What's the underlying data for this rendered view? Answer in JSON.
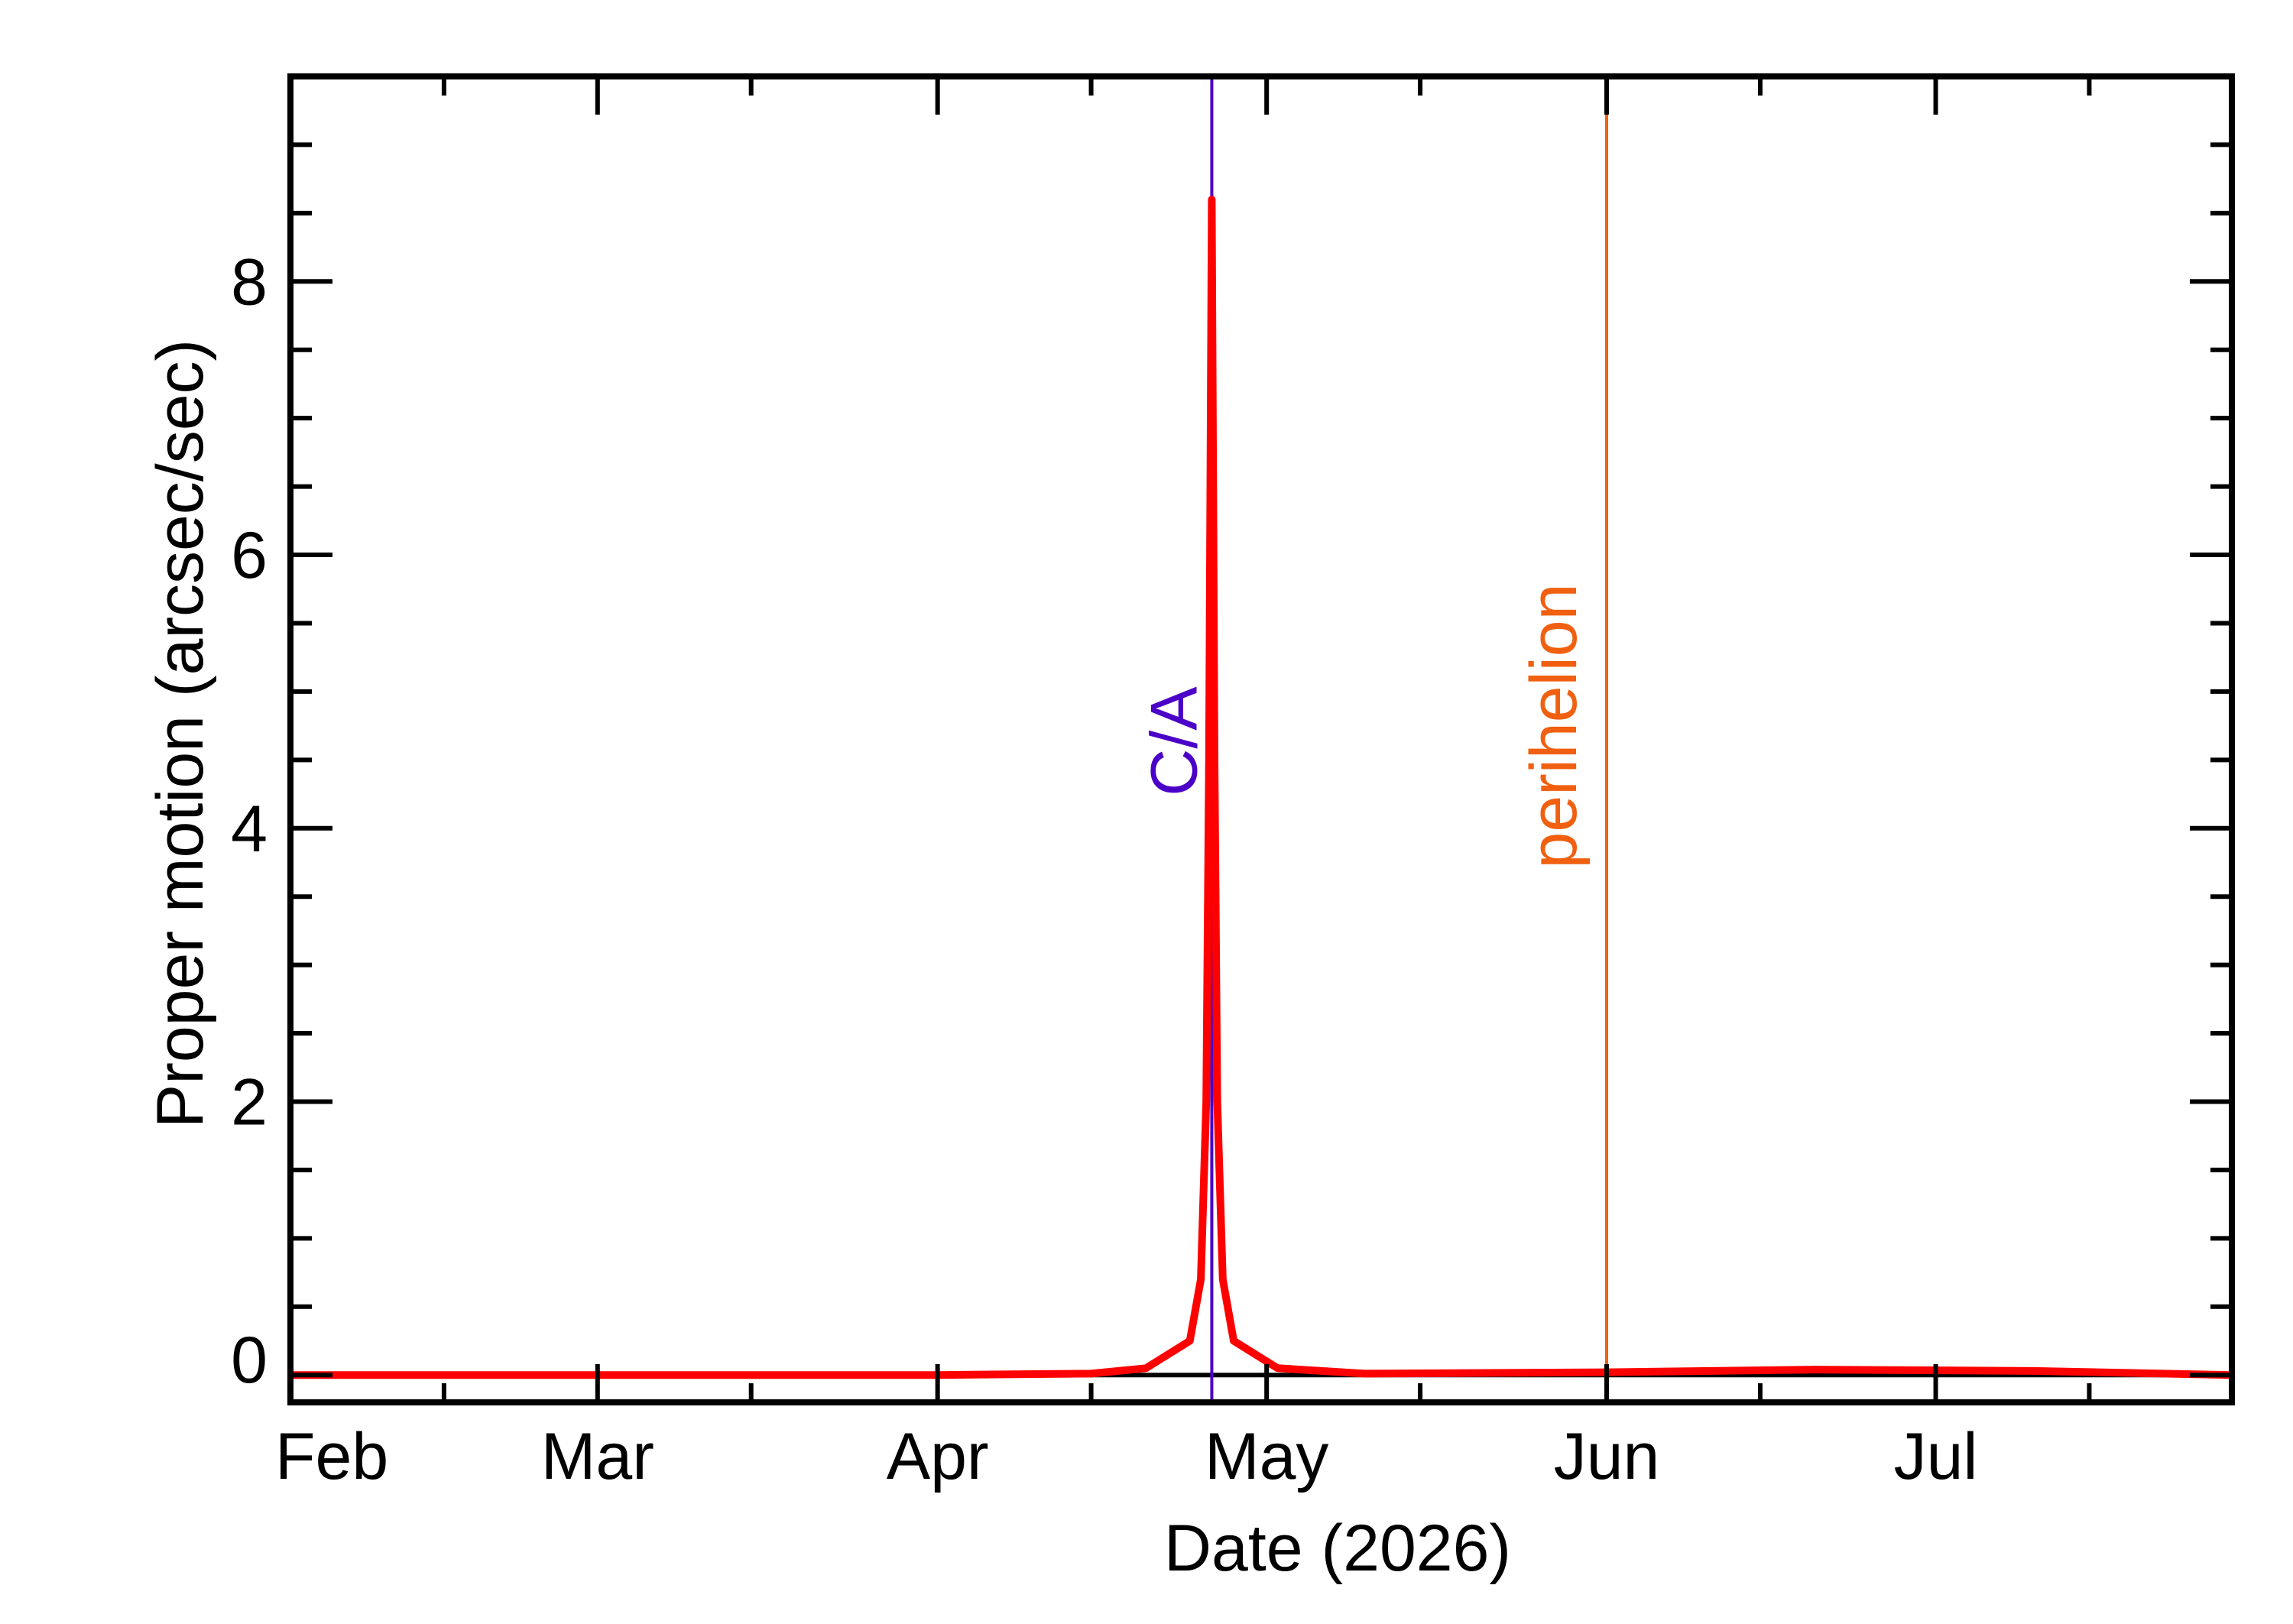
{
  "chart_data": {
    "type": "line",
    "xlabel": "Date (2026)",
    "ylabel": "Proper motion (arcsec/sec)",
    "x_ticks": [
      {
        "label": "Feb",
        "date": "2026-02-01"
      },
      {
        "label": "Mar",
        "date": "2026-03-01"
      },
      {
        "label": "Apr",
        "date": "2026-04-01"
      },
      {
        "label": "May",
        "date": "2026-05-01"
      },
      {
        "label": "Jun",
        "date": "2026-06-01"
      },
      {
        "label": "Jul",
        "date": "2026-07-01"
      }
    ],
    "y_ticks": [
      "0",
      "2",
      "4",
      "6",
      "8"
    ],
    "xlim": [
      "2026-02-01",
      "2026-07-28"
    ],
    "ylim": [
      -0.2,
      9.5
    ],
    "grid": false,
    "series": [
      {
        "color": "#ff0000",
        "points": [
          [
            "2026-02-01",
            0.0
          ],
          [
            "2026-03-01",
            0.0
          ],
          [
            "2026-04-01",
            0.0
          ],
          [
            "2026-04-15",
            0.01
          ],
          [
            "2026-04-20",
            0.05
          ],
          [
            "2026-04-24",
            0.25
          ],
          [
            "2026-04-25",
            0.7
          ],
          [
            "2026-04-25T12:00",
            2.0
          ],
          [
            "2026-04-25T18:00",
            4.5
          ],
          [
            "2026-04-26T00:00",
            8.6
          ],
          [
            "2026-04-26T06:00",
            4.5
          ],
          [
            "2026-04-26T12:00",
            2.0
          ],
          [
            "2026-04-27",
            0.7
          ],
          [
            "2026-04-28",
            0.25
          ],
          [
            "2026-05-02",
            0.05
          ],
          [
            "2026-05-10",
            0.01
          ],
          [
            "2026-06-01",
            0.02
          ],
          [
            "2026-06-20",
            0.04
          ],
          [
            "2026-07-10",
            0.03
          ],
          [
            "2026-07-28",
            0.0
          ]
        ]
      }
    ],
    "markers": [
      {
        "label": "C/A",
        "date": "2026-04-26",
        "color": "#4b00c8"
      },
      {
        "label": "perihelion",
        "date": "2026-06-01",
        "color": "#f06010"
      }
    ]
  }
}
